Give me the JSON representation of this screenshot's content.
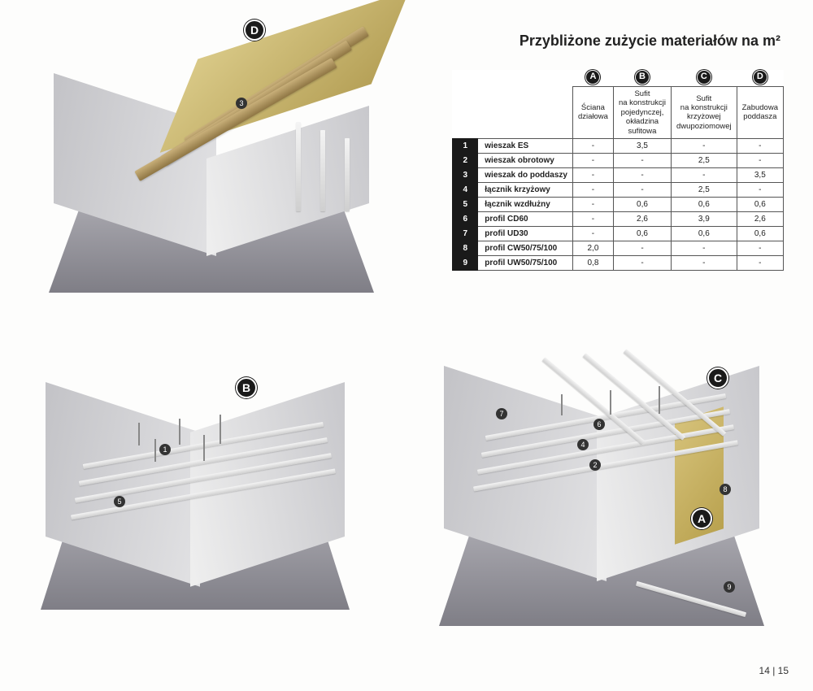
{
  "title": "Przybliżone zużycie materiałów na m²",
  "page_number": "14 | 15",
  "letter_labels": [
    "A",
    "B",
    "C",
    "D"
  ],
  "table": {
    "columns": [
      {
        "letter": "A",
        "header": "Ściana\ndziałowa"
      },
      {
        "letter": "B",
        "header": "Sufit\nna konstrukcji\npojedynczej,\nokładzina\nsufitowa"
      },
      {
        "letter": "C",
        "header": "Sufit\nna konstrukcji\nkrzyżowej\ndwupoziomowej"
      },
      {
        "letter": "D",
        "header": "Zabudowa\npoddasza"
      }
    ],
    "rows": [
      {
        "n": "1",
        "name": "wieszak ES",
        "vals": [
          "-",
          "3,5",
          "-",
          "-"
        ]
      },
      {
        "n": "2",
        "name": "wieszak obrotowy",
        "vals": [
          "-",
          "-",
          "2,5",
          "-"
        ]
      },
      {
        "n": "3",
        "name": "wieszak do poddaszy",
        "vals": [
          "-",
          "-",
          "-",
          "3,5"
        ]
      },
      {
        "n": "4",
        "name": "łącznik krzyżowy",
        "vals": [
          "-",
          "-",
          "2,5",
          "-"
        ]
      },
      {
        "n": "5",
        "name": "łącznik wzdłużny",
        "vals": [
          "-",
          "0,6",
          "0,6",
          "0,6"
        ]
      },
      {
        "n": "6",
        "name": "profil CD60",
        "vals": [
          "-",
          "2,6",
          "3,9",
          "2,6"
        ]
      },
      {
        "n": "7",
        "name": "profil UD30",
        "vals": [
          "-",
          "0,6",
          "0,6",
          "0,6"
        ]
      },
      {
        "n": "8",
        "name": "profil CW50/75/100",
        "vals": [
          "2,0",
          "-",
          "-",
          "-"
        ]
      },
      {
        "n": "9",
        "name": "profil UW50/75/100",
        "vals": [
          "0,8",
          "-",
          "-",
          "-"
        ]
      }
    ]
  },
  "diagram_labels": {
    "D_main": "D",
    "B_main": "B",
    "C_main": "C",
    "A_main": "A",
    "nums_B": [
      "1",
      "5"
    ],
    "nums_C": [
      "2",
      "4",
      "6",
      "7",
      "8",
      "9"
    ],
    "nums_D": [
      "3"
    ]
  },
  "colors": {
    "wall": "#d9d9dd",
    "floor": "#8a8991",
    "profile": "#e8e8e8",
    "panel": "#cdb975",
    "rafter": "#b3945a",
    "callout_bg": "#1a1a1a",
    "callout_fg": "#ffffff",
    "table_border": "#555555",
    "text": "#222222",
    "page_bg": "#fdfdfc"
  }
}
